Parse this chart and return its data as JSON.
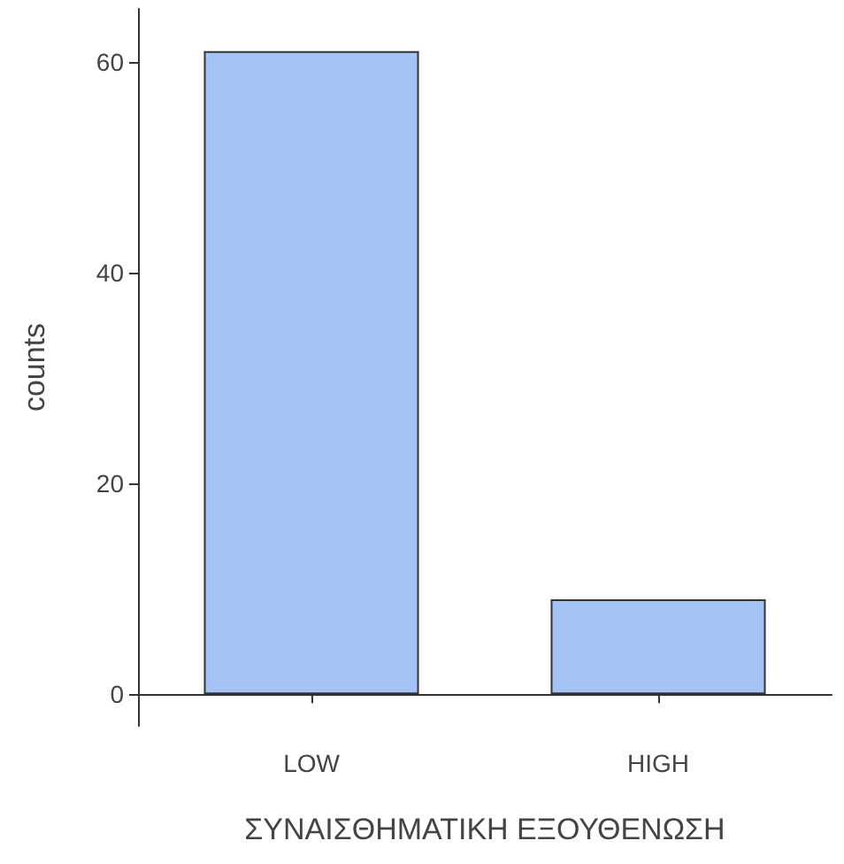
{
  "chart_data": {
    "type": "bar",
    "categories": [
      "LOW",
      "HIGH"
    ],
    "values": [
      61,
      9
    ],
    "color": "#a4c2f4",
    "xlabel": "ΣΥΝΑΙΣΘΗΜΑΤΙΚΗ ΕΞΟΥΘΕΝΩΣΗ",
    "ylabel": "counts",
    "ylim": [
      -3,
      65
    ],
    "yticks": [
      0,
      20,
      40,
      60
    ],
    "grid": false
  }
}
